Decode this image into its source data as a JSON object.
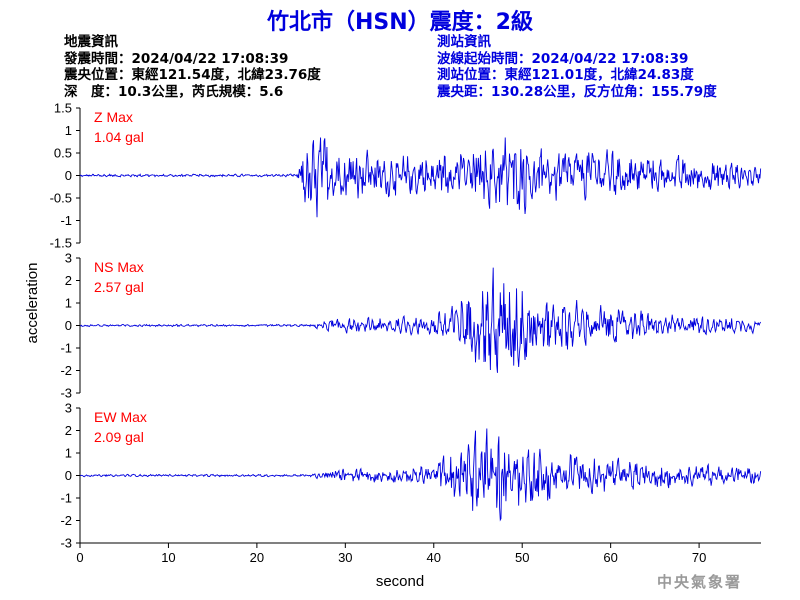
{
  "title": "竹北市（HSN）震度：2級",
  "quake_info": {
    "heading": "地震資訊",
    "time": "發震時間：2024/04/22 17:08:39",
    "epicenter": "震央位置：東經121.54度，北緯23.76度",
    "depth_mag": "深　度：10.3公里，芮氏規模：5.6"
  },
  "station_info": {
    "heading": "測站資訊",
    "wave_start": "波線起始時間：2024/04/22 17:08:39",
    "location": "測站位置：東經121.01度，北緯24.83度",
    "distance": "震央距：130.28公里，反方位角：155.79度"
  },
  "watermark": "中央氣象署",
  "colors": {
    "title": "#0000dd",
    "trace": "#0000dd",
    "max_label": "#ff0000"
  },
  "chart_data": [
    {
      "type": "line",
      "component": "Z",
      "max_label": "Z Max",
      "max_value": "1.04 gal",
      "peak": 1.04,
      "xlim": [
        0,
        77
      ],
      "ylim": [
        -1.5,
        1.5
      ],
      "yticks": [
        -1.5,
        -1,
        -0.5,
        0,
        0.5,
        1,
        1.5
      ],
      "ytick_labels": [
        "-1.5",
        "-1",
        "-0.5",
        "0",
        "0.5",
        "1",
        "1.5"
      ],
      "onset_s": 25,
      "x": [
        0,
        24.5,
        25.5,
        26,
        27,
        28,
        30,
        33,
        36,
        40,
        44,
        47,
        48.5,
        50,
        52,
        55,
        60,
        65,
        70,
        74,
        77
      ],
      "envelope": [
        0.03,
        0.03,
        0.8,
        1.04,
        0.9,
        0.75,
        0.6,
        0.5,
        0.45,
        0.5,
        0.55,
        0.7,
        0.95,
        0.8,
        0.6,
        0.55,
        0.5,
        0.45,
        0.35,
        0.3,
        0.2
      ]
    },
    {
      "type": "line",
      "component": "NS",
      "max_label": "NS Max",
      "max_value": "2.57 gal",
      "peak": 2.57,
      "xlim": [
        0,
        77
      ],
      "ylim": [
        -3,
        3
      ],
      "yticks": [
        -3,
        -2,
        -1,
        0,
        1,
        2,
        3
      ],
      "ytick_labels": [
        "-3",
        "-2",
        "-1",
        "0",
        "1",
        "2",
        "3"
      ],
      "onset_s": 26,
      "x": [
        0,
        26,
        28,
        30,
        35,
        40,
        42,
        44,
        46,
        48,
        50,
        52,
        55,
        60,
        65,
        70,
        74,
        77
      ],
      "envelope": [
        0.05,
        0.05,
        0.25,
        0.3,
        0.35,
        0.4,
        1.0,
        1.6,
        2.4,
        2.57,
        1.9,
        1.4,
        1.1,
        0.8,
        0.55,
        0.45,
        0.35,
        0.3
      ]
    },
    {
      "type": "line",
      "component": "EW",
      "max_label": "EW Max",
      "max_value": "2.09 gal",
      "peak": 2.09,
      "xlim": [
        0,
        77
      ],
      "ylim": [
        -3,
        3
      ],
      "yticks": [
        -3,
        -2,
        -1,
        0,
        1,
        2,
        3
      ],
      "ytick_labels": [
        "-3",
        "-2",
        "-1",
        "0",
        "1",
        "2",
        "3"
      ],
      "onset_s": 26,
      "x": [
        0,
        26,
        28,
        30,
        35,
        40,
        42,
        44,
        46,
        48,
        50,
        52,
        55,
        60,
        65,
        70,
        74,
        77
      ],
      "envelope": [
        0.05,
        0.05,
        0.25,
        0.3,
        0.3,
        0.45,
        1.2,
        1.6,
        2.09,
        2.0,
        1.5,
        1.2,
        1.0,
        0.75,
        0.55,
        0.45,
        0.4,
        0.35
      ]
    }
  ],
  "xaxis": {
    "label": "second",
    "ticks": [
      0,
      10,
      20,
      30,
      40,
      50,
      60,
      70
    ],
    "tick_labels": [
      "0",
      "10",
      "20",
      "30",
      "40",
      "50",
      "60",
      "70"
    ]
  },
  "ylabel": "acceleration"
}
